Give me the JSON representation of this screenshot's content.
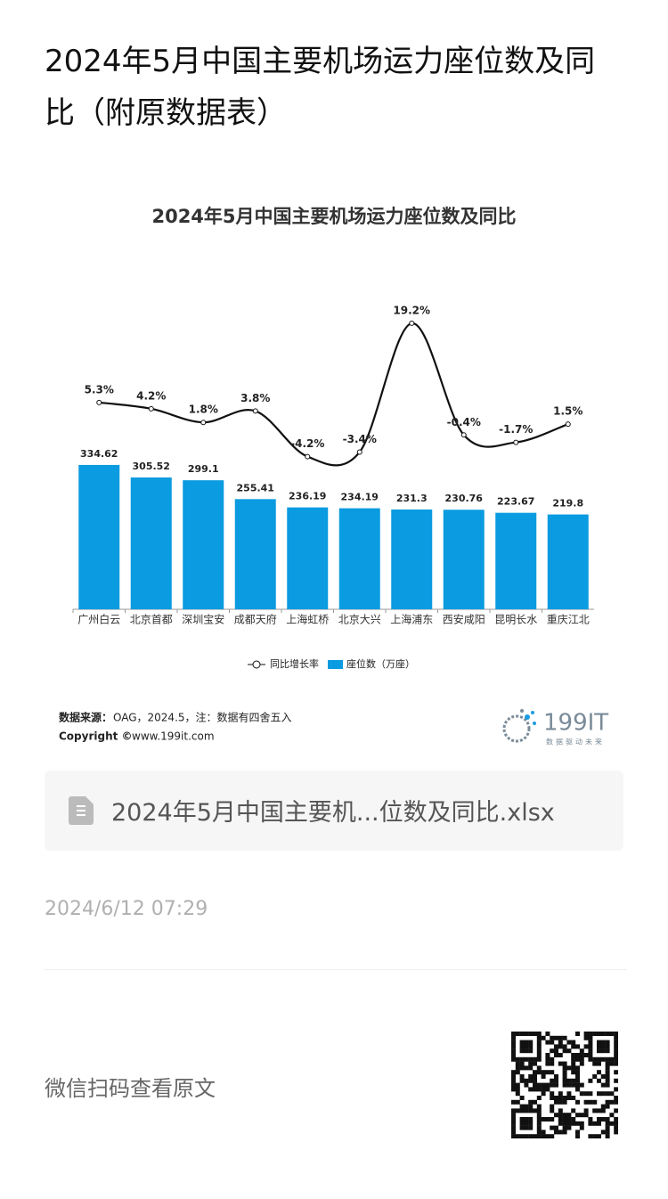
{
  "title": "2024年5月中国主要机场运力座位数及同比（附原数据表）",
  "chart_data": {
    "type": "bar-line",
    "title": "2024年5月中国主要机场运力座位数及同比",
    "categories": [
      "广州白云",
      "北京首都",
      "深圳宝安",
      "成都天府",
      "上海虹桥",
      "北京大兴",
      "上海浦东",
      "西安咸阳",
      "昆明长水",
      "重庆江北"
    ],
    "series": [
      {
        "name": "座位数（万座）",
        "type": "bar",
        "color": "#0a9be0",
        "values": [
          334.62,
          305.52,
          299.1,
          255.41,
          236.19,
          234.19,
          231.3,
          230.76,
          223.67,
          219.8
        ]
      },
      {
        "name": "同比增长率",
        "type": "line",
        "axis": "y2",
        "color": "#111111",
        "values": [
          5.3,
          4.2,
          1.8,
          3.8,
          -4.2,
          -3.4,
          19.2,
          -0.4,
          -1.7,
          1.5
        ],
        "value_labels": [
          "5.3%",
          "4.2%",
          "1.8%",
          "3.8%",
          "-4.2%",
          "-3.4%",
          "19.2%",
          "-0.4%",
          "-1.7%",
          "1.5%"
        ]
      }
    ],
    "ylim": [
      0,
      700
    ],
    "y2lim": [
      -31,
      22
    ]
  },
  "source": {
    "label": "数据来源：",
    "text": "OAG，2024.5，注：数据有四舍五入",
    "copyright_label": "Copyright ©",
    "copyright_text": "www.199it.com"
  },
  "logo": {
    "name": "199IT",
    "slogan": "数据驱动未来"
  },
  "attachment": {
    "file_name": "2024年5月中国主要机...位数及同比.xlsx"
  },
  "timestamp": "2024/6/12 07:29",
  "qr_caption": "微信扫码查看原文"
}
